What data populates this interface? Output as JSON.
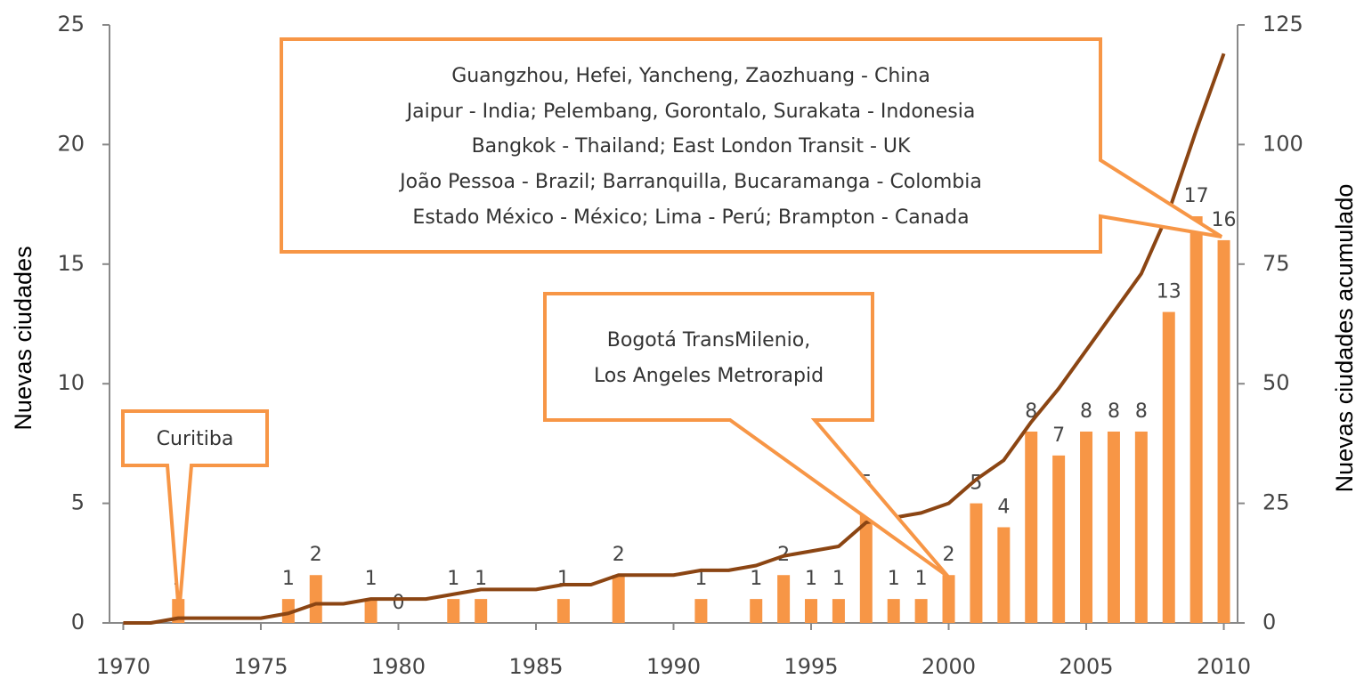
{
  "chart_data": {
    "type": "bar-line",
    "y_label": "Nuevas ciudades",
    "y2_label": "Nuevas ciudades acumulado",
    "xlim": [
      1969.5,
      2010.5
    ],
    "xticks": [
      1970,
      1975,
      1980,
      1985,
      1990,
      1995,
      2000,
      2005,
      2010
    ],
    "ylim": [
      0,
      25
    ],
    "yticks": [
      0,
      5,
      10,
      15,
      20,
      25
    ],
    "y2lim": [
      0,
      125
    ],
    "y2ticks": [
      0,
      25,
      50,
      75,
      100,
      125
    ],
    "grid": false,
    "series": [
      {
        "type": "bar",
        "color": "#f79646",
        "x": [
          1972,
          1976,
          1977,
          1979,
          1980,
          1982,
          1983,
          1986,
          1988,
          1991,
          1993,
          1994,
          1995,
          1996,
          1997,
          1998,
          1999,
          2000,
          2001,
          2002,
          2003,
          2004,
          2005,
          2006,
          2007,
          2008,
          2009,
          2010
        ],
        "values": [
          1,
          1,
          2,
          1,
          0,
          1,
          1,
          1,
          2,
          1,
          1,
          2,
          1,
          1,
          5,
          1,
          1,
          2,
          5,
          4,
          8,
          7,
          8,
          8,
          8,
          13,
          17,
          16
        ]
      },
      {
        "type": "line",
        "color": "#8b4513",
        "axis": "y2",
        "x": [
          1970,
          1971,
          1972,
          1973,
          1974,
          1975,
          1976,
          1977,
          1978,
          1979,
          1980,
          1981,
          1982,
          1983,
          1984,
          1985,
          1986,
          1987,
          1988,
          1989,
          1990,
          1991,
          1992,
          1993,
          1994,
          1995,
          1996,
          1997,
          1998,
          1999,
          2000,
          2001,
          2002,
          2003,
          2004,
          2005,
          2006,
          2007,
          2008,
          2009,
          2010
        ],
        "values": [
          0,
          0,
          1,
          1,
          1,
          1,
          2,
          4,
          4,
          5,
          5,
          5,
          6,
          7,
          7,
          7,
          8,
          8,
          10,
          10,
          10,
          11,
          11,
          12,
          14,
          15,
          16,
          21,
          22,
          23,
          25,
          30,
          34,
          42,
          49,
          57,
          65,
          73,
          86,
          103,
          119
        ]
      }
    ],
    "annotations": [
      {
        "lines": [
          "Curitiba"
        ]
      },
      {
        "lines": [
          "Bogotá TransMilenio,",
          "Los Angeles Metrorapid"
        ]
      },
      {
        "lines": [
          "Guangzhou, Hefei, Yancheng, Zaozhuang - China",
          "Jaipur - India; Pelembang, Gorontalo, Surakata - Indonesia",
          "Bangkok - Thailand; East London Transit - UK",
          "João Pessoa - Brazil; Barranquilla, Bucaramanga - Colombia",
          "Estado México - México; Lima - Perú; Brampton - Canada"
        ]
      }
    ]
  }
}
